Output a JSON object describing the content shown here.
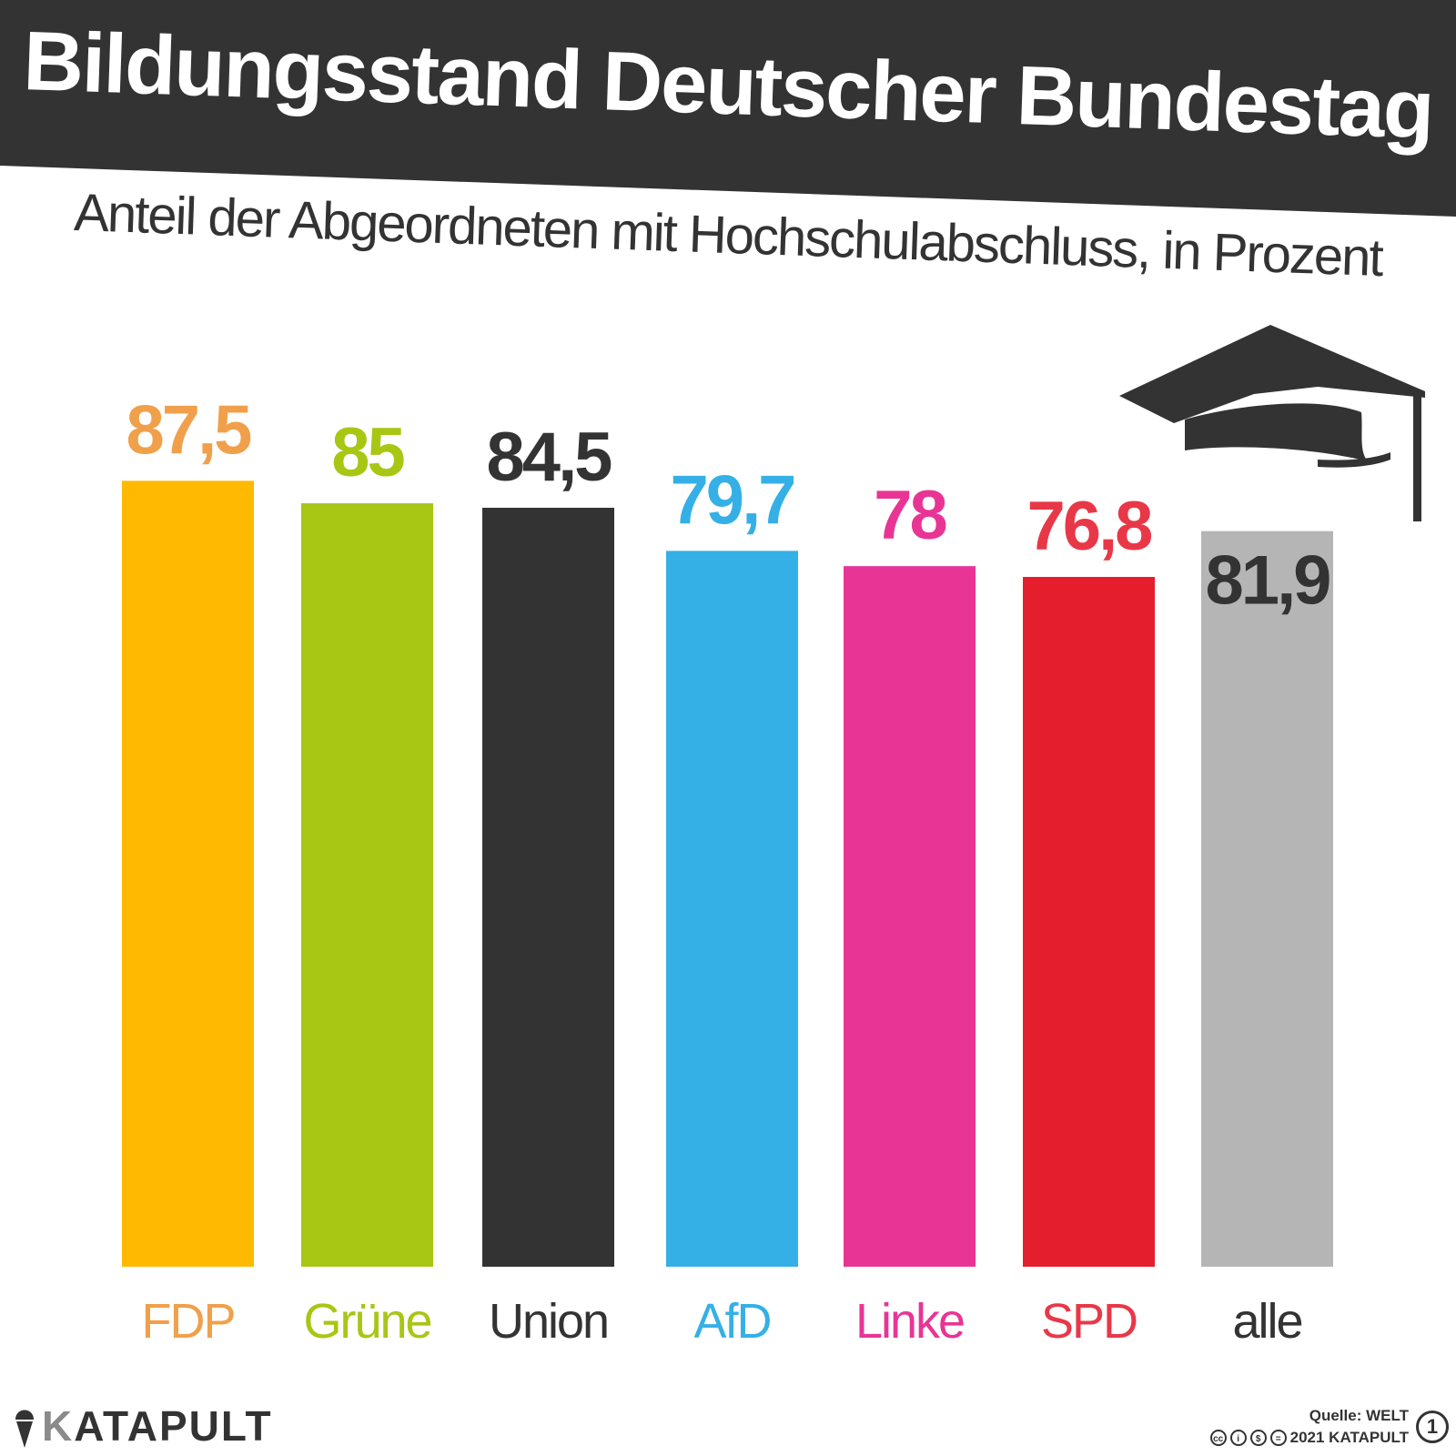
{
  "header": {
    "title": "Bildungsstand Deutscher Bundestag",
    "subtitle": "Anteil der Abgeordneten mit Hochschulabschluss, in Prozent",
    "band_color": "#333333"
  },
  "chart_data": {
    "type": "bar",
    "title": "Bildungsstand Deutscher Bundestag",
    "subtitle": "Anteil der Abgeordneten mit Hochschulabschluss, in Prozent",
    "xlabel": "",
    "ylabel": "",
    "unit": "Prozent",
    "ylim": [
      0,
      100
    ],
    "grid": false,
    "categories": [
      "FDP",
      "Grüne",
      "Union",
      "AfD",
      "Linke",
      "SPD",
      "alle"
    ],
    "values": [
      87.5,
      85,
      84.5,
      79.7,
      78,
      76.8,
      81.9
    ],
    "value_labels": [
      "87,5",
      "85",
      "84,5",
      "79,7",
      "78",
      "76,8",
      "81,9"
    ],
    "bar_colors": [
      "#FFB900",
      "#A8C614",
      "#333333",
      "#35B0E6",
      "#E83595",
      "#E41E2C",
      "#B5B5B5"
    ],
    "label_colors": [
      "#F0A04B",
      "#A8C614",
      "#333333",
      "#35B0E6",
      "#E83595",
      "#E83848",
      "#333333"
    ]
  },
  "decoration": {
    "icon": "graduation-cap-icon",
    "color": "#333333"
  },
  "footer": {
    "logo_text": "KATAPULT",
    "source": "Quelle: WELT",
    "copyright": "2021 KATAPULT",
    "license_badge": "1"
  }
}
